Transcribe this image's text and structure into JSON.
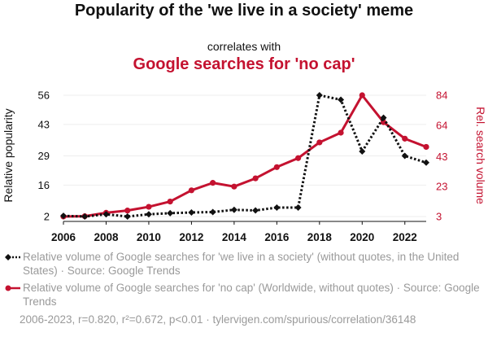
{
  "header": {
    "title": "Popularity of the 'we live in a society' meme",
    "connector": "correlates with",
    "subtitle": "Google searches for 'no cap'"
  },
  "colors": {
    "series1": "#111111",
    "series2": "#c41230",
    "legend_text": "#9a9a9a"
  },
  "chart_data": {
    "type": "line",
    "x": [
      2006,
      2007,
      2008,
      2009,
      2010,
      2011,
      2012,
      2013,
      2014,
      2015,
      2016,
      2017,
      2018,
      2019,
      2020,
      2021,
      2022,
      2023
    ],
    "xticks": [
      "2006",
      "2008",
      "2010",
      "2012",
      "2014",
      "2016",
      "2018",
      "2020",
      "2022"
    ],
    "xlim": [
      2006,
      2023
    ],
    "ylabel_left": "Relative popularity",
    "ylabel_right": "Rel. search volume",
    "yticks_left": [
      "2",
      "16",
      "29",
      "43",
      "56"
    ],
    "yticks_right": [
      "3",
      "23",
      "43",
      "64",
      "84"
    ],
    "ylim_left": [
      2,
      56
    ],
    "ylim_right": [
      3,
      84
    ],
    "series": [
      {
        "name": "Relative volume of Google searches for 'we live in a society' (without quotes, in the United States) · Source: Google Trends",
        "axis": "left",
        "style": "dotted",
        "marker": "diamond",
        "values": [
          2.3,
          2.0,
          3.0,
          2.0,
          3.0,
          3.5,
          3.8,
          4.0,
          5.0,
          4.7,
          6.0,
          6.0,
          56.0,
          54.0,
          31.0,
          46.0,
          29.0,
          26.0
        ]
      },
      {
        "name": "Relative volume of Google searches for 'no cap' (Worldwide, without quotes) · Source: Google Trends",
        "axis": "right",
        "style": "solid",
        "marker": "circle",
        "values": [
          3.0,
          3.2,
          5.5,
          7.0,
          9.5,
          13.0,
          20.5,
          25.5,
          23.0,
          28.5,
          36.0,
          42.0,
          52.5,
          59.0,
          84.0,
          66.0,
          55.0,
          49.5
        ]
      }
    ]
  },
  "legend": {
    "item1": "Relative volume of Google searches for 'we live in a society' (without quotes, in the United States) · Source: Google Trends",
    "item2": "Relative volume of Google searches for 'no cap' (Worldwide, without quotes) · Source: Google Trends"
  },
  "footnote": "2006-2023, r=0.820, r²=0.672, p<0.01 · tylervigen.com/spurious/correlation/36148"
}
